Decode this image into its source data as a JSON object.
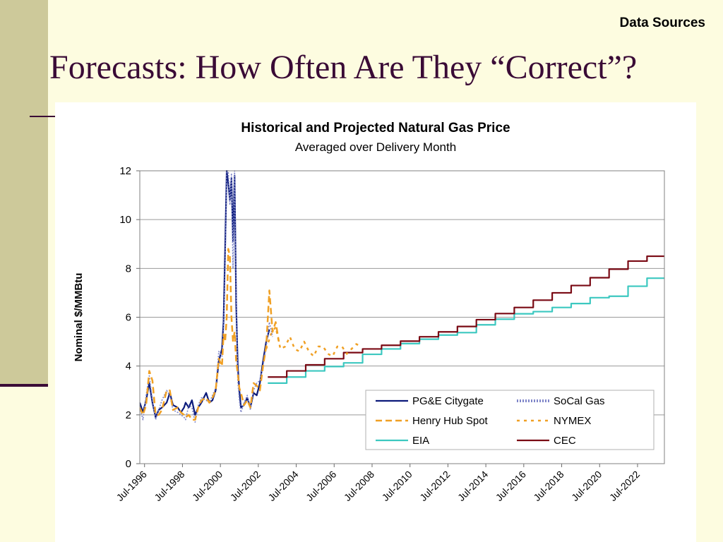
{
  "slide": {
    "corner_label": "Data Sources",
    "title": "Forecasts: How Often Are They “Correct”?"
  },
  "colors": {
    "background": "#fdfce0",
    "title": "#3a0b36",
    "left_strip": "#cdc99a"
  },
  "chart_data": {
    "type": "line",
    "title": "Historical and Projected Natural Gas Price",
    "subtitle": "Averaged over Delivery Month",
    "xlabel": "",
    "ylabel": "Nominal $/MMBtu",
    "x_type": "date",
    "xlim": [
      "1996-04",
      "2023-12"
    ],
    "ylim": [
      0,
      12
    ],
    "yticks": [
      0,
      2,
      4,
      6,
      8,
      10,
      12
    ],
    "xtick_labels": [
      "Jul-1996",
      "Jul-1998",
      "Jul-2000",
      "Jul-2002",
      "Jul-2004",
      "Jul-2006",
      "Jul-2008",
      "Jul-2010",
      "Jul-2012",
      "Jul-2014",
      "Jul-2016",
      "Jul-2018",
      "Jul-2020",
      "Jul-2022"
    ],
    "xtick_dates": [
      "1996-07",
      "1998-07",
      "2000-07",
      "2002-07",
      "2004-07",
      "2006-07",
      "2008-07",
      "2010-07",
      "2012-07",
      "2014-07",
      "2016-07",
      "2018-07",
      "2020-07",
      "2022-07"
    ],
    "grid": "horizontal",
    "legend_position": "bottom-right",
    "series": [
      {
        "name": "PG&E Citygate",
        "color": "#0b1a7a",
        "style": "solid",
        "points": [
          [
            "1996-04",
            2.5
          ],
          [
            "1996-06",
            2.1
          ],
          [
            "1996-08",
            2.6
          ],
          [
            "1996-10",
            3.3
          ],
          [
            "1996-12",
            2.5
          ],
          [
            "1997-02",
            1.9
          ],
          [
            "1997-04",
            2.2
          ],
          [
            "1997-06",
            2.3
          ],
          [
            "1997-09",
            2.5
          ],
          [
            "1997-11",
            2.9
          ],
          [
            "1998-01",
            2.4
          ],
          [
            "1998-04",
            2.3
          ],
          [
            "1998-06",
            2.1
          ],
          [
            "1998-08",
            2.3
          ],
          [
            "1998-09",
            2.5
          ],
          [
            "1998-11",
            2.3
          ],
          [
            "1999-01",
            2.6
          ],
          [
            "1999-03",
            2.0
          ],
          [
            "1999-05",
            2.3
          ],
          [
            "1999-07",
            2.5
          ],
          [
            "1999-10",
            2.9
          ],
          [
            "1999-12",
            2.5
          ],
          [
            "2000-02",
            2.6
          ],
          [
            "2000-04",
            3.0
          ],
          [
            "2000-06",
            4.2
          ],
          [
            "2000-08",
            4.7
          ],
          [
            "2000-09",
            5.8
          ],
          [
            "2000-10",
            8.8
          ],
          [
            "2000-11",
            12.0
          ],
          [
            "2000-12",
            11.5
          ],
          [
            "2001-01",
            10.8
          ],
          [
            "2001-02",
            11.7
          ],
          [
            "2001-03",
            9.1
          ],
          [
            "2001-04",
            11.8
          ],
          [
            "2001-05",
            6.5
          ],
          [
            "2001-06",
            4.0
          ],
          [
            "2001-07",
            3.0
          ],
          [
            "2001-08",
            2.3
          ],
          [
            "2001-10",
            2.4
          ],
          [
            "2001-12",
            2.7
          ],
          [
            "2002-02",
            2.3
          ],
          [
            "2002-04",
            2.9
          ],
          [
            "2002-06",
            2.8
          ],
          [
            "2002-08",
            3.3
          ],
          [
            "2002-10",
            4.2
          ],
          [
            "2002-12",
            5.0
          ],
          [
            "2003-02",
            5.5
          ]
        ]
      },
      {
        "name": "SoCal Gas",
        "color": "#7f86c9",
        "style": "dotted",
        "points": [
          [
            "1996-04",
            2.3
          ],
          [
            "1996-06",
            1.8
          ],
          [
            "1996-08",
            2.8
          ],
          [
            "1996-10",
            3.6
          ],
          [
            "1996-12",
            2.6
          ],
          [
            "1997-02",
            1.8
          ],
          [
            "1997-04",
            2.2
          ],
          [
            "1997-06",
            2.6
          ],
          [
            "1997-09",
            3.0
          ],
          [
            "1997-11",
            2.8
          ],
          [
            "1998-01",
            2.2
          ],
          [
            "1998-04",
            2.1
          ],
          [
            "1998-06",
            2.0
          ],
          [
            "1998-08",
            1.9
          ],
          [
            "1998-09",
            1.8
          ],
          [
            "1998-11",
            2.4
          ],
          [
            "1999-01",
            2.3
          ],
          [
            "1999-03",
            1.7
          ],
          [
            "1999-05",
            2.4
          ],
          [
            "1999-07",
            2.7
          ],
          [
            "1999-10",
            2.6
          ],
          [
            "1999-12",
            2.5
          ],
          [
            "2000-02",
            2.8
          ],
          [
            "2000-04",
            3.1
          ],
          [
            "2000-06",
            4.6
          ],
          [
            "2000-08",
            4.4
          ],
          [
            "2000-09",
            5.5
          ],
          [
            "2000-10",
            8.0
          ],
          [
            "2000-11",
            12.0
          ],
          [
            "2000-12",
            12.0
          ],
          [
            "2001-01",
            10.6
          ],
          [
            "2001-02",
            11.9
          ],
          [
            "2001-03",
            8.0
          ],
          [
            "2001-04",
            12.0
          ],
          [
            "2001-05",
            7.0
          ],
          [
            "2001-06",
            3.4
          ],
          [
            "2001-07",
            2.6
          ],
          [
            "2001-08",
            2.1
          ],
          [
            "2001-10",
            2.5
          ],
          [
            "2001-12",
            2.8
          ],
          [
            "2002-02",
            2.2
          ],
          [
            "2002-04",
            3.0
          ],
          [
            "2002-06",
            3.3
          ],
          [
            "2002-08",
            3.4
          ],
          [
            "2002-10",
            4.0
          ],
          [
            "2002-12",
            4.8
          ],
          [
            "2003-02",
            5.8
          ],
          [
            "2003-04",
            5.2
          ]
        ]
      },
      {
        "name": "Henry Hub Spot",
        "color": "#f0a024",
        "style": "dashed",
        "points": [
          [
            "1996-04",
            2.3
          ],
          [
            "1996-06",
            2.0
          ],
          [
            "1996-08",
            2.4
          ],
          [
            "1996-10",
            3.8
          ],
          [
            "1996-12",
            3.4
          ],
          [
            "1997-02",
            2.0
          ],
          [
            "1997-04",
            2.0
          ],
          [
            "1997-06",
            2.2
          ],
          [
            "1997-09",
            3.0
          ],
          [
            "1997-11",
            3.0
          ],
          [
            "1998-01",
            2.2
          ],
          [
            "1998-04",
            2.3
          ],
          [
            "1998-06",
            2.1
          ],
          [
            "1998-08",
            2.0
          ],
          [
            "1998-09",
            1.9
          ],
          [
            "1998-11",
            2.0
          ],
          [
            "1999-01",
            1.8
          ],
          [
            "1999-03",
            1.8
          ],
          [
            "1999-05",
            2.3
          ],
          [
            "1999-07",
            2.6
          ],
          [
            "1999-10",
            2.7
          ],
          [
            "1999-12",
            2.5
          ],
          [
            "2000-02",
            2.7
          ],
          [
            "2000-04",
            3.0
          ],
          [
            "2000-06",
            4.3
          ],
          [
            "2000-08",
            4.0
          ],
          [
            "2000-09",
            5.3
          ],
          [
            "2000-10",
            5.0
          ],
          [
            "2000-11",
            6.0
          ],
          [
            "2000-12",
            8.8
          ],
          [
            "2001-01",
            8.5
          ],
          [
            "2001-02",
            6.0
          ],
          [
            "2001-03",
            5.0
          ],
          [
            "2001-04",
            5.4
          ],
          [
            "2001-05",
            4.2
          ],
          [
            "2001-06",
            3.7
          ],
          [
            "2001-07",
            3.1
          ],
          [
            "2001-08",
            2.9
          ],
          [
            "2001-10",
            2.4
          ],
          [
            "2001-12",
            2.6
          ],
          [
            "2002-02",
            2.3
          ],
          [
            "2002-04",
            3.3
          ],
          [
            "2002-06",
            3.2
          ],
          [
            "2002-08",
            3.0
          ],
          [
            "2002-10",
            4.0
          ],
          [
            "2002-12",
            4.8
          ],
          [
            "2003-02",
            7.1
          ],
          [
            "2003-04",
            5.4
          ],
          [
            "2003-06",
            5.8
          ],
          [
            "2003-08",
            5.0
          ]
        ]
      },
      {
        "name": "NYMEX",
        "color": "#f0a024",
        "style": "dotted",
        "points": [
          [
            "2002-12",
            4.7
          ],
          [
            "2003-03",
            5.3
          ],
          [
            "2003-06",
            5.6
          ],
          [
            "2003-09",
            4.7
          ],
          [
            "2003-12",
            4.8
          ],
          [
            "2004-03",
            5.2
          ],
          [
            "2004-06",
            4.7
          ],
          [
            "2004-09",
            4.6
          ],
          [
            "2004-12",
            5.0
          ],
          [
            "2005-03",
            4.6
          ],
          [
            "2005-06",
            4.4
          ],
          [
            "2005-09",
            4.8
          ],
          [
            "2005-12",
            4.8
          ],
          [
            "2006-03",
            4.5
          ],
          [
            "2006-06",
            4.4
          ],
          [
            "2006-09",
            4.8
          ],
          [
            "2006-12",
            4.8
          ],
          [
            "2007-03",
            4.5
          ],
          [
            "2007-06",
            4.7
          ],
          [
            "2007-09",
            4.9
          ],
          [
            "2007-12",
            4.8
          ]
        ]
      },
      {
        "name": "EIA",
        "color": "#3cc8c0",
        "style": "step",
        "points": [
          [
            "2003-01",
            3.3
          ],
          [
            "2004-01",
            3.55
          ],
          [
            "2005-01",
            3.8
          ],
          [
            "2006-01",
            3.98
          ],
          [
            "2007-01",
            4.13
          ],
          [
            "2008-01",
            4.48
          ],
          [
            "2009-01",
            4.7
          ],
          [
            "2010-01",
            4.92
          ],
          [
            "2011-01",
            5.1
          ],
          [
            "2012-01",
            5.27
          ],
          [
            "2013-01",
            5.37
          ],
          [
            "2014-01",
            5.69
          ],
          [
            "2015-01",
            5.92
          ],
          [
            "2016-01",
            6.14
          ],
          [
            "2017-01",
            6.23
          ],
          [
            "2018-01",
            6.4
          ],
          [
            "2019-01",
            6.56
          ],
          [
            "2020-01",
            6.8
          ],
          [
            "2021-01",
            6.86
          ],
          [
            "2022-01",
            7.27
          ],
          [
            "2023-01",
            7.6
          ],
          [
            "2023-12",
            7.6
          ]
        ]
      },
      {
        "name": "CEC",
        "color": "#7a0a14",
        "style": "step",
        "points": [
          [
            "2003-01",
            3.55
          ],
          [
            "2004-01",
            3.8
          ],
          [
            "2005-01",
            4.05
          ],
          [
            "2006-01",
            4.3
          ],
          [
            "2007-01",
            4.55
          ],
          [
            "2008-01",
            4.7
          ],
          [
            "2009-01",
            4.85
          ],
          [
            "2010-01",
            5.02
          ],
          [
            "2011-01",
            5.2
          ],
          [
            "2012-01",
            5.4
          ],
          [
            "2013-01",
            5.62
          ],
          [
            "2014-01",
            5.9
          ],
          [
            "2015-01",
            6.15
          ],
          [
            "2016-01",
            6.4
          ],
          [
            "2017-01",
            6.7
          ],
          [
            "2018-01",
            7.0
          ],
          [
            "2019-01",
            7.3
          ],
          [
            "2020-01",
            7.62
          ],
          [
            "2021-01",
            7.97
          ],
          [
            "2022-01",
            8.3
          ],
          [
            "2023-01",
            8.5
          ],
          [
            "2023-12",
            8.5
          ]
        ]
      }
    ],
    "legend_order": [
      "PG&E Citygate",
      "SoCal Gas",
      "Henry Hub Spot",
      "NYMEX",
      "EIA",
      "CEC"
    ]
  }
}
